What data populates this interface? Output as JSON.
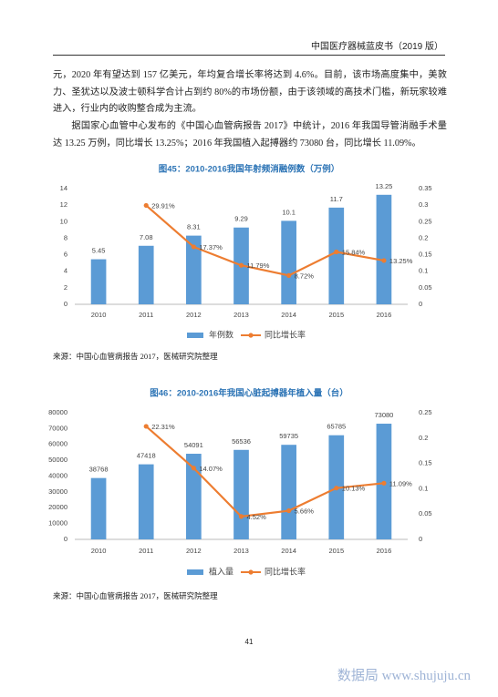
{
  "header": {
    "title": "中国医疗器械蓝皮书（2019 版）"
  },
  "paragraphs": [
    "元，2020 年有望达到 157 亿美元，年均复合增长率将达到 4.6%。目前，该市场高度集中，美敦力、圣犹达以及波士顿科学合计占到约 80%的市场份额，由于该领域的高技术门槛，新玩家较难进入，行业内的收购整合成为主流。",
    "据国家心血管中心发布的《中国心血管病报告 2017》中统计，2016 年我国导管消融手术量达 13.25 万例，同比增长 13.25%；2016 年我国植入起搏器约 73080 台，同比增长 11.09%。"
  ],
  "chart_data": [
    {
      "type": "combo",
      "title": "图45：2010-2016我国年射频消融例数（万例）",
      "categories": [
        "2010",
        "2011",
        "2012",
        "2013",
        "2014",
        "2015",
        "2016"
      ],
      "series": [
        {
          "name": "年例数",
          "color": "#5b9bd5",
          "values": [
            5.45,
            7.08,
            8.31,
            9.29,
            10.1,
            11.7,
            13.25
          ]
        },
        {
          "name": "同比增长率",
          "color": "#ed7d31",
          "axis": "y2",
          "values": [
            null,
            0.2991,
            0.1737,
            0.1179,
            0.0872,
            0.1584,
            0.1325
          ],
          "value_labels": [
            null,
            "29.91%",
            "17.37%",
            "11.79%",
            "8.72%",
            "15.84%",
            "13.25%"
          ]
        }
      ],
      "ylim": [
        0,
        14
      ],
      "yticks": [
        0,
        2,
        4,
        6,
        8,
        10,
        12,
        14
      ],
      "y2lim": [
        0,
        0.35
      ],
      "y2ticks": [
        0,
        0.05,
        0.1,
        0.15,
        0.2,
        0.25,
        0.3,
        0.35
      ],
      "grid": false,
      "legend": "bottom",
      "source": "来源：中国心血管病报告 2017，医械研究院整理"
    },
    {
      "type": "combo",
      "title": "图46：2010-2016年我国心脏起搏器年植入量（台）",
      "categories": [
        "2010",
        "2011",
        "2012",
        "2013",
        "2014",
        "2015",
        "2016"
      ],
      "series": [
        {
          "name": "植入量",
          "color": "#5b9bd5",
          "values": [
            38768,
            47418,
            54091,
            56536,
            59735,
            65785,
            73080
          ]
        },
        {
          "name": "同比增长率",
          "color": "#ed7d31",
          "axis": "y2",
          "values": [
            null,
            0.2231,
            0.1407,
            0.0452,
            0.0566,
            0.1013,
            0.1109
          ],
          "value_labels": [
            null,
            "22.31%",
            "14.07%",
            "4.52%",
            "5.66%",
            "10.13%",
            "11.09%"
          ]
        }
      ],
      "ylim": [
        0,
        80000
      ],
      "yticks": [
        0,
        10000,
        20000,
        30000,
        40000,
        50000,
        60000,
        70000,
        80000
      ],
      "y2lim": [
        0,
        0.25
      ],
      "y2ticks": [
        0,
        0.05,
        0.1,
        0.15,
        0.2,
        0.25
      ],
      "grid": false,
      "legend": "bottom",
      "source": "来源：中国心血管病报告 2017，医械研究院整理"
    }
  ],
  "page_number": "41",
  "watermark": "数据局 www.shujuju.cn"
}
